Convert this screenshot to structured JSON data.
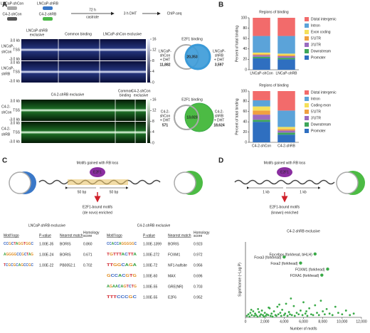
{
  "panel_a": {
    "label": "A",
    "tubes": [
      "LNCaP-shCon",
      "LNCaP-shRB",
      "C4-2-shCon",
      "C4-2-shRB"
    ],
    "step1": "72 h",
    "step1b": "castrate",
    "step2": "3 h DHT",
    "step3": "ChIP-seq",
    "lncap": {
      "columns": [
        [
          "LNCaP-shRB",
          "exclusive"
        ],
        [
          "Common binding"
        ],
        [
          "LNCaP-shCon exclusive"
        ]
      ],
      "rows": [
        [
          "LNCaP-",
          "shCon"
        ],
        [
          "LNCaP-",
          "shRB"
        ]
      ],
      "axis": [
        "3.0 kb",
        "TSS",
        "-3.0 kb"
      ],
      "colorbar": [
        16,
        12,
        8,
        4,
        0
      ]
    },
    "c42": {
      "columns": [
        [
          "C4-2-shRB exclusive"
        ],
        [
          "Common",
          "binding"
        ],
        [
          "C4-2-shCon",
          "exclusive"
        ]
      ],
      "rows": [
        [
          "C4-2-",
          "shCon"
        ],
        [
          "C4-2-",
          "shRB"
        ]
      ],
      "axis": [
        "3.0 kb",
        "TSS",
        "-3.0 kb"
      ],
      "colorbar": [
        16,
        12,
        8,
        4,
        0
      ]
    },
    "venn1": {
      "title": "E2F1 binding",
      "left_label": [
        "LNCaP-",
        "shCon",
        "+ DHT"
      ],
      "left": "11,882",
      "overlap": "20,353",
      "right_label": [
        "LNCaP-",
        "shRB",
        "+ DHT"
      ],
      "right": "3,597"
    },
    "venn2": {
      "title": "E2F1 binding",
      "left_label": [
        "C4-2-",
        "shCon",
        "+ DHT"
      ],
      "left": "571",
      "overlap": "13,023",
      "right_label": [
        "C4-2-",
        "shRB",
        "+ DHT"
      ],
      "right": "18,624"
    }
  },
  "panel_b": {
    "label": "B"
  },
  "panel_c": {
    "label": "C",
    "title": "Motifs gained with RB loss",
    "protein": "E2F1",
    "left_bp": "50 bp",
    "right_bp": "50 bp",
    "result": [
      "E2F1-bound motifs",
      "(de novo) enriched"
    ],
    "tables": [
      {
        "title": "LNCaP-shRB exclusive",
        "headers": [
          "Motif logo",
          "P-value",
          "Nearest match",
          [
            "Homology",
            "score"
          ]
        ],
        "rows": [
          [
            "CCGCTAGGTGGC",
            "1.00E-35",
            "BORIS",
            "0.860"
          ],
          [
            "AGGGGCCGCTAG",
            "1.00E-24",
            "BORIS",
            "0.671"
          ],
          [
            "TCGCGCAGCCGC",
            "1.00E-22",
            "PB0052.1",
            "0.702"
          ]
        ]
      },
      {
        "title": "C4-2-shRB exclusive",
        "headers": [
          "Motif logo",
          "P-value",
          "Nearest match",
          [
            "Homology",
            "score"
          ]
        ],
        "rows": [
          [
            "CCACCAGGGGGC",
            "1.00E-1399",
            "BORIS",
            "0.923"
          ],
          [
            "TGTTTACTTA",
            "1.00E-272",
            "FOXM1",
            "0.972"
          ],
          [
            "TTGGCAGA",
            "1.00E-72",
            "NF1-halfsite",
            "0.956"
          ],
          [
            "GCCACGTG",
            "1.00E-60",
            "MAX",
            "0.696"
          ],
          [
            "AGAACAGTCTG",
            "1.00E-55",
            "GRE(NR)",
            "0.703"
          ],
          [
            "TTTCCCGC",
            "1.00E-55",
            "E2F6",
            "0.952"
          ]
        ]
      }
    ]
  },
  "panel_d": {
    "label": "D",
    "title": "Motifs gained with RB loss",
    "left_kb": "1 kb",
    "right_kb": "1 kb",
    "result": [
      "E2F1-bound motifs",
      "(known) enriched"
    ]
  },
  "chart_data": [
    {
      "type": "bar",
      "stacked": true,
      "title": "Regions of binding",
      "ylabel": "Percent of total binding",
      "categories": [
        "LNCaP-shCon",
        "LNCaP-shRB"
      ],
      "ylim": [
        0,
        100
      ],
      "yticks": [
        0,
        20,
        40,
        60,
        80,
        100
      ],
      "series": [
        {
          "name": "Promoter",
          "color": "#2f6fc0",
          "values": [
            22,
            20
          ]
        },
        {
          "name": "Downstream",
          "color": "#3ea65a",
          "values": [
            3,
            3
          ]
        },
        {
          "name": "3'UTR",
          "color": "#9b6cc0",
          "values": [
            3,
            3
          ]
        },
        {
          "name": "5'UTR",
          "color": "#f0a040",
          "values": [
            2,
            2
          ]
        },
        {
          "name": "Exon coding",
          "color": "#f5e05a",
          "values": [
            3,
            3
          ]
        },
        {
          "name": "Intron",
          "color": "#5ba3d9",
          "values": [
            32,
            34
          ]
        },
        {
          "name": "Distal intergenic",
          "color": "#f26b6b",
          "values": [
            35,
            35
          ]
        }
      ]
    },
    {
      "type": "bar",
      "stacked": true,
      "title": "Regions of binding",
      "ylabel": "Percent of total binding",
      "categories": [
        "C4-2-shCon",
        "C4-2-shRB"
      ],
      "ylim": [
        0,
        100
      ],
      "yticks": [
        0,
        20,
        40,
        60,
        80,
        100
      ],
      "series": [
        {
          "name": "Promoter",
          "color": "#2f6fc0",
          "values": [
            40,
            15
          ]
        },
        {
          "name": "Downstream",
          "color": "#3ea65a",
          "values": [
            4,
            4
          ]
        },
        {
          "name": "3'UTR",
          "color": "#9b6cc0",
          "values": [
            10,
            4
          ]
        },
        {
          "name": "5'UTR",
          "color": "#f0a040",
          "values": [
            8,
            3
          ]
        },
        {
          "name": "Coding exon",
          "color": "#f5e05a",
          "values": [
            8,
            4
          ]
        },
        {
          "name": "Intron",
          "color": "#5ba3d9",
          "values": [
            12,
            32
          ]
        },
        {
          "name": "Distal intergenic",
          "color": "#f26b6b",
          "values": [
            18,
            38
          ]
        }
      ]
    },
    {
      "type": "scatter",
      "title": "C4-2-shRB exclusive",
      "xlabel": "Number of motifs",
      "ylabel": "Significance (−Log P)",
      "color": "#3aaa48",
      "xlim": [
        0,
        12000
      ],
      "xticks": [
        0,
        {
          "value": 2000,
          "label": "2,000"
        },
        {
          "value": 4000,
          "label": "4,000"
        },
        {
          "value": 6000,
          "label": "6,000"
        },
        {
          "value": 8000,
          "label": "8,000"
        },
        {
          "value": 10000,
          "label": "10,000"
        },
        {
          "value": 12000,
          "label": "12,000"
        }
      ],
      "ylim": [
        0,
        100
      ],
      "x": [
        150,
        300,
        420,
        500,
        650,
        800,
        900,
        1000,
        1100,
        1250,
        1400,
        1500,
        1600,
        1700,
        1800,
        1900,
        2000,
        2100,
        2200,
        2350,
        2500,
        2600,
        2700,
        2800,
        2950,
        3100,
        3200,
        3300,
        3400,
        3600,
        3700,
        3800,
        4000,
        4100,
        4200,
        4350,
        4500,
        4600,
        4800,
        5000,
        5100,
        5300,
        5500,
        5700,
        5900,
        6000,
        6200,
        6400,
        6600,
        6800,
        7000,
        7200,
        7400,
        7600,
        7800,
        8000,
        8200,
        8400,
        8700,
        9000,
        9300,
        9600,
        10000,
        10400,
        10800,
        11200,
        600,
        1300,
        2400,
        3500,
        4700,
        6300
      ],
      "y": [
        2,
        4,
        1,
        6,
        3,
        8,
        2,
        5,
        3,
        1,
        7,
        2,
        4,
        9,
        3,
        1,
        6,
        2,
        4,
        3,
        12,
        2,
        5,
        1,
        8,
        3,
        2,
        14,
        4,
        6,
        2,
        10,
        3,
        5,
        18,
        2,
        7,
        4,
        3,
        15,
        2,
        6,
        4,
        9,
        3,
        20,
        5,
        2,
        12,
        4,
        3,
        16,
        6,
        3,
        22,
        8,
        4,
        11,
        5,
        3,
        14,
        6,
        4,
        9,
        3,
        5,
        10,
        11,
        13,
        17,
        25,
        8
      ],
      "annotations": [
        {
          "text": "Foxa3 (forkhead)",
          "x": 4000,
          "y": 80
        },
        {
          "text": "Foxa2 (forkhead)",
          "x": 5700,
          "y": 72
        },
        {
          "text": "Fox:ebox (forkhead, bHLH)",
          "x": 7200,
          "y": 84
        },
        {
          "text": "FOXM1 (forkhead)",
          "x": 8500,
          "y": 64
        },
        {
          "text": "FOXA1 (forkhead)",
          "x": 7900,
          "y": 56
        }
      ]
    }
  ]
}
